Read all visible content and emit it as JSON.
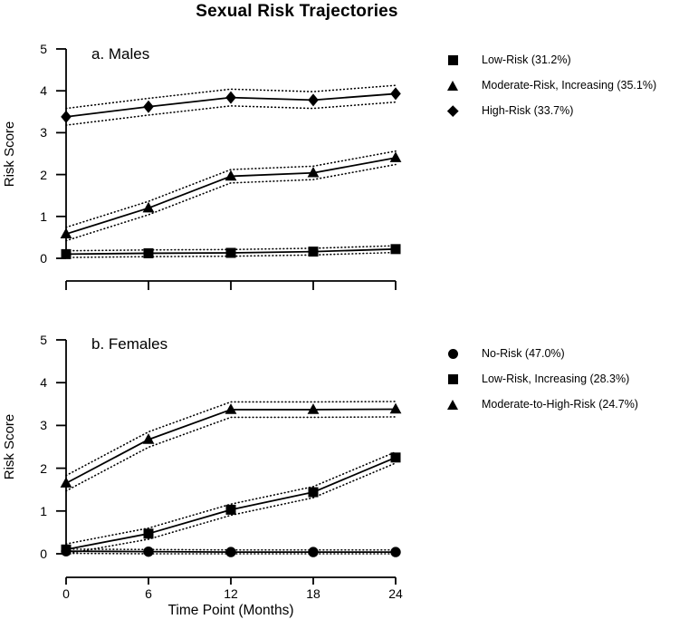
{
  "title": "Sexual Risk Trajectories",
  "colors": {
    "ink": "#000000",
    "background": "#ffffff"
  },
  "chart_data": [
    {
      "type": "line",
      "panel_label": "a. Males",
      "ylabel": "Risk Score",
      "xlabel": "",
      "x": [
        0,
        6,
        12,
        18,
        24
      ],
      "xticks": [
        0,
        6,
        12,
        18,
        24
      ],
      "show_x_tick_labels": false,
      "yticks": [
        0,
        1,
        2,
        3,
        4,
        5
      ],
      "ylim": [
        0,
        5
      ],
      "grid": false,
      "legend_position": "right",
      "band_style": "dotted-95pct-ci",
      "series": [
        {
          "name": "Low-Risk (31.2%)",
          "marker": "square",
          "values": [
            0.1,
            0.12,
            0.13,
            0.16,
            0.22
          ],
          "ci": 0.08
        },
        {
          "name": "Moderate-Risk, Increasing (35.1%)",
          "marker": "triangle",
          "values": [
            0.58,
            1.2,
            1.96,
            2.04,
            2.4
          ],
          "ci": 0.16
        },
        {
          "name": "High-Risk (33.7%)",
          "marker": "diamond",
          "values": [
            3.38,
            3.62,
            3.84,
            3.78,
            3.93
          ],
          "ci": 0.2
        }
      ]
    },
    {
      "type": "line",
      "panel_label": "b. Females",
      "ylabel": "Risk Score",
      "xlabel": "Time Point (Months)",
      "x": [
        0,
        6,
        12,
        18,
        24
      ],
      "xticks": [
        0,
        6,
        12,
        18,
        24
      ],
      "show_x_tick_labels": true,
      "yticks": [
        0,
        1,
        2,
        3,
        4,
        5
      ],
      "ylim": [
        0,
        5
      ],
      "grid": false,
      "legend_position": "right",
      "band_style": "dotted-95pct-ci",
      "series": [
        {
          "name": "No-Risk (47.0%)",
          "marker": "circle",
          "values": [
            0.06,
            0.05,
            0.04,
            0.04,
            0.04
          ],
          "ci": 0.05
        },
        {
          "name": "Low-Risk, Increasing (28.3%)",
          "marker": "square",
          "values": [
            0.1,
            0.47,
            1.03,
            1.44,
            2.25
          ],
          "ci": 0.13
        },
        {
          "name": "Moderate-to-High-Risk (24.7%)",
          "marker": "triangle",
          "values": [
            1.65,
            2.67,
            3.37,
            3.37,
            3.38
          ],
          "ci": 0.18
        }
      ]
    }
  ]
}
